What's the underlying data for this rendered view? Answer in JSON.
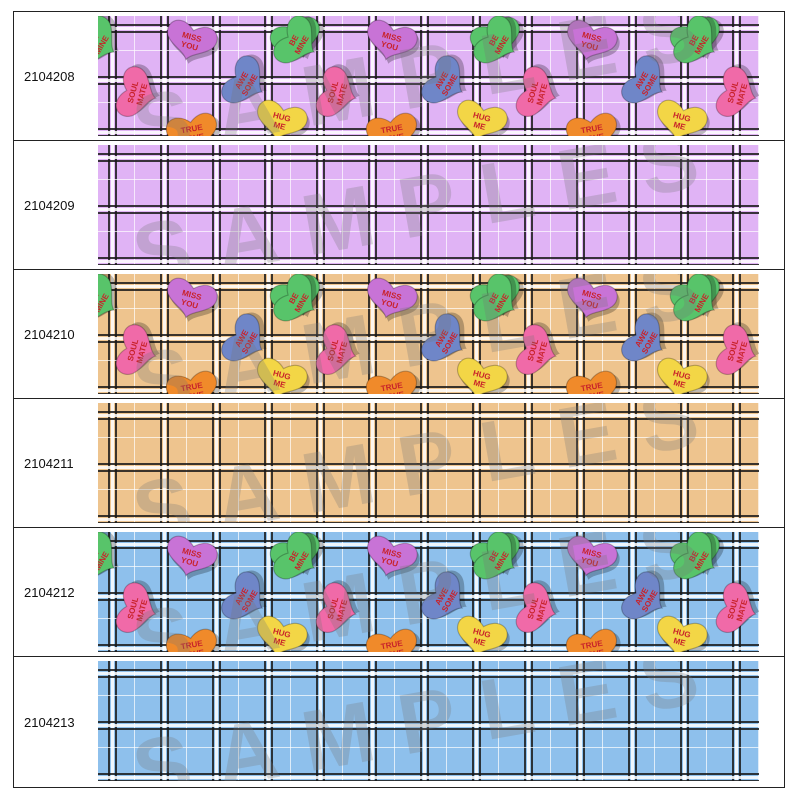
{
  "rows": [
    {
      "code": "2104208",
      "pattern": "hearts",
      "bg": "#e0b3f5",
      "watermark": "SAMPLES"
    },
    {
      "code": "2104209",
      "pattern": "plaid",
      "bg": "#e0b3f5",
      "watermark": "SAMPLES"
    },
    {
      "code": "2104210",
      "pattern": "hearts",
      "bg": "#eec48e",
      "watermark": "SAMPLES"
    },
    {
      "code": "2104211",
      "pattern": "plaid",
      "bg": "#eec48e",
      "watermark": "SAMPLES"
    },
    {
      "code": "2104212",
      "pattern": "hearts",
      "bg": "#8ec0ec",
      "watermark": "SAMPLES"
    },
    {
      "code": "2104213",
      "pattern": "plaid",
      "bg": "#8ec0ec",
      "watermark": "SAMPLES"
    }
  ],
  "heart_texts": [
    "MISS YOU",
    "BE MINE",
    "AWE SOME",
    "SOUL MATE",
    "HUG ME",
    "TRUE LOVE"
  ],
  "heart_colors": {
    "MISS YOU": "#c873d6",
    "BE MINE": "#58c46a",
    "AWE SOME": "#6f86c8",
    "SOUL MATE": "#f06aa8",
    "HUG ME": "#f3d646",
    "TRUE LOVE": "#f08a2a"
  },
  "heart_text_color": "#c8222a"
}
